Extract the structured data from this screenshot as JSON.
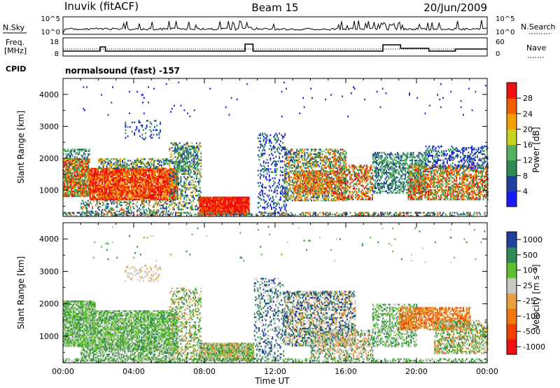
{
  "header": {
    "left_title": "Inuvik (fitACF)",
    "center_title": "Beam 15",
    "right_title": "20/Jun/2009"
  },
  "strip_labels": {
    "nsky": "N.Sky",
    "nsearch": "N.Search",
    "freq_line1": "Freq.",
    "freq_line2": "[MHz]",
    "nave": "Nave",
    "cpid": "CPID",
    "cpid_value": "normalsound (fast) -157",
    "noise_ticks_left": [
      "10^5",
      "10^0"
    ],
    "noise_ticks_right": [
      "10^5",
      "10^0"
    ],
    "freq_ticks": [
      "18",
      "8"
    ],
    "nave_ticks": [
      "60",
      "0"
    ]
  },
  "colors": {
    "power_scale": [
      "#1a1aff",
      "#2040a0",
      "#2f8a55",
      "#55b060",
      "#c8d020",
      "#f0a000",
      "#f06000",
      "#ee1010"
    ],
    "velocity_scale": [
      "#ee1010",
      "#f04000",
      "#f07810",
      "#e8a040",
      "#c8c8c0",
      "#60c030",
      "#2f8a55",
      "#2040a0"
    ]
  },
  "chart_data": [
    {
      "type": "heatmap",
      "panel": "power",
      "ylabel": "Slant Range [km]",
      "y_ticks": [
        "4000",
        "3000",
        "2000",
        "1000"
      ],
      "x_ticks": [
        "00:00",
        "04:00",
        "08:00",
        "12:00",
        "16:00",
        "20:00",
        "00:00"
      ],
      "colorbar_label": "Power [dB]",
      "colorbar_ticks": [
        "28",
        "24",
        "20",
        "16",
        "12",
        "8",
        "4"
      ],
      "ylim": [
        180,
        4500
      ]
    },
    {
      "type": "heatmap",
      "panel": "velocity",
      "ylabel": "Slant Range [km]",
      "y_ticks": [
        "4000",
        "3000",
        "2000",
        "1000"
      ],
      "x_ticks": [
        "00:00",
        "04:00",
        "08:00",
        "12:00",
        "16:00",
        "20:00",
        "00:00"
      ],
      "xlabel": "Time UT",
      "colorbar_label": "Velocity [m s⁻¹]",
      "colorbar_ticks": [
        "1000",
        "500",
        "100",
        "25",
        "-25",
        "-100",
        "-500",
        "-1000"
      ],
      "ylim": [
        180,
        4500
      ]
    }
  ]
}
